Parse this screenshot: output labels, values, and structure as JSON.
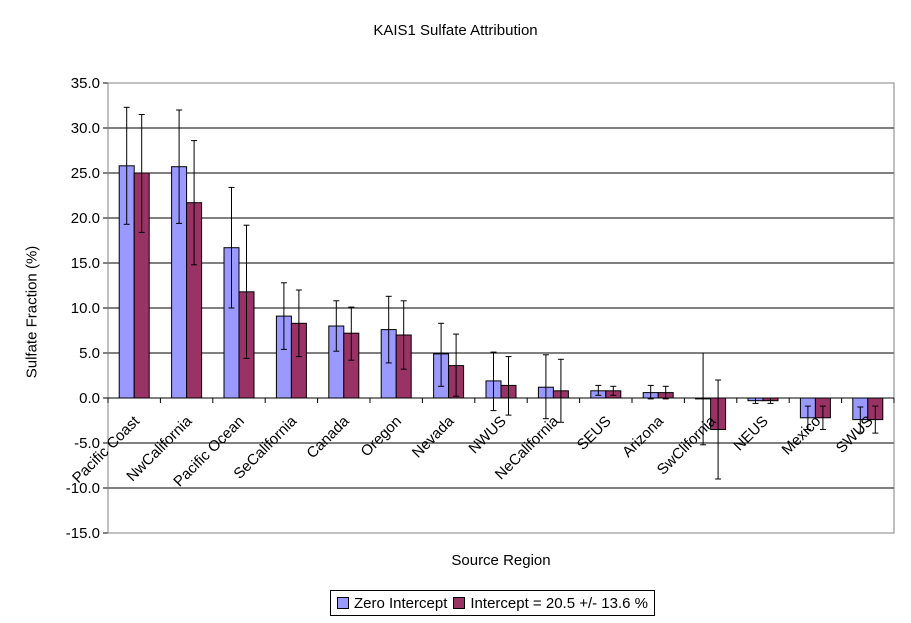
{
  "chart_data": {
    "type": "bar",
    "title": "KAIS1 Sulfate Attribution",
    "xlabel": "Source Region",
    "ylabel": "Sulfate Fraction (%)",
    "ylim": [
      -15.0,
      35.0
    ],
    "yticks": [
      "-15.0",
      "-10.0",
      "-5.0",
      "0.0",
      "5.0",
      "10.0",
      "15.0",
      "20.0",
      "25.0",
      "30.0",
      "35.0"
    ],
    "grid": true,
    "legend_position": "bottom",
    "categories": [
      "Pacific Coast",
      "NwCalifornia",
      "Pacific Ocean",
      "SeCalifornia",
      "Canada",
      "Oregon",
      "Nevada",
      "NWUS",
      "NeCalifornia",
      "SEUS",
      "Arizona",
      "SwClifornia",
      "NEUS",
      "Mexico",
      "SWUS"
    ],
    "series": [
      {
        "name": "Zero Intercept",
        "color": "#9999ff",
        "values": [
          25.8,
          25.7,
          16.7,
          9.1,
          8.0,
          7.6,
          4.9,
          1.9,
          1.2,
          0.8,
          0.6,
          -0.1,
          -0.3,
          -2.2,
          -2.4
        ],
        "err_low": [
          6.5,
          6.3,
          6.7,
          3.7,
          2.8,
          3.7,
          3.6,
          3.3,
          3.5,
          0.5,
          0.7,
          5.1,
          0.3,
          1.3,
          1.4
        ],
        "err_high": [
          6.5,
          6.3,
          6.7,
          3.7,
          2.8,
          3.7,
          3.4,
          3.2,
          3.6,
          0.6,
          0.8,
          5.1,
          0.3,
          1.3,
          1.4
        ]
      },
      {
        "name": "Intercept = 20.5 +/- 13.6 %",
        "color": "#993366",
        "values": [
          25.0,
          21.7,
          11.8,
          8.3,
          7.2,
          7.0,
          3.6,
          1.4,
          0.8,
          0.8,
          0.6,
          -3.5,
          -0.3,
          -2.2,
          -2.4
        ],
        "err_low": [
          6.6,
          6.9,
          7.4,
          3.7,
          3.0,
          3.8,
          3.4,
          3.3,
          3.5,
          0.5,
          0.7,
          5.5,
          0.3,
          1.3,
          1.5
        ],
        "err_high": [
          6.5,
          6.9,
          7.4,
          3.7,
          2.9,
          3.8,
          3.5,
          3.2,
          3.5,
          0.5,
          0.7,
          5.5,
          0.3,
          1.3,
          1.5
        ]
      }
    ]
  }
}
